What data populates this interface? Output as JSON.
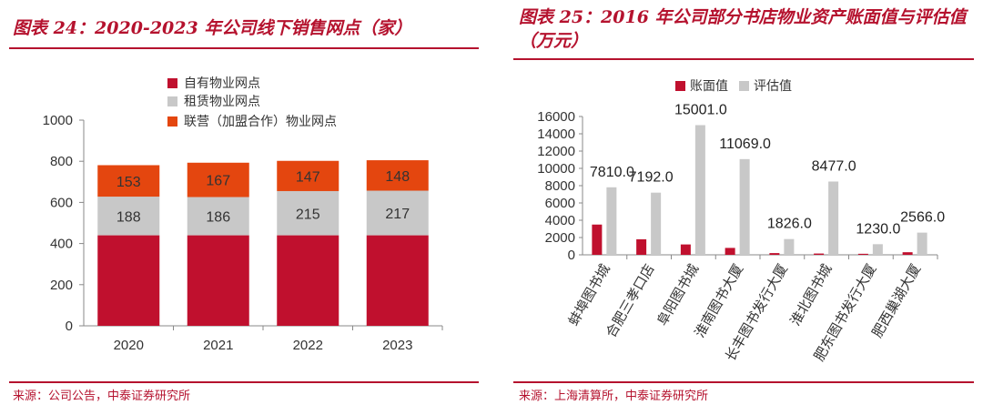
{
  "left": {
    "title": "图表 24：2020-2023 年公司线下销售网点（家）",
    "source": "来源：公司公告，中泰证券研究所",
    "colors": {
      "self": "#c0102e",
      "lease": "#c8c8c8",
      "coop": "#e4460f"
    },
    "chart_data": {
      "type": "bar",
      "stacked": true,
      "categories": [
        "2020",
        "2021",
        "2022",
        "2023"
      ],
      "series": [
        {
          "name": "自有物业网点",
          "values": [
            440,
            440,
            440,
            440
          ]
        },
        {
          "name": "租赁物业网点",
          "values": [
            188,
            186,
            215,
            217
          ]
        },
        {
          "name": "联营（加盟合作）物业网点",
          "values": [
            153,
            167,
            147,
            148
          ]
        }
      ],
      "ylim": [
        0,
        1000
      ],
      "yticks": [
        0,
        200,
        400,
        600,
        800,
        1000
      ],
      "legend": "top-center"
    }
  },
  "right": {
    "title": "图表 25：2016 年公司部分书店物业资产账面值与评估值（万元）",
    "source": "来源：上海清算所，中泰证券研究所",
    "colors": {
      "book": "#c0102e",
      "eval": "#c8c8c8"
    },
    "chart_data": {
      "type": "bar",
      "categories": [
        "蚌埠图书城",
        "合肥三孝口店",
        "阜阳图书城",
        "淮南图书大厦",
        "长丰图书发行大厦",
        "淮北图书城",
        "肥东图书发行大厦",
        "肥西巢湖大厦"
      ],
      "series": [
        {
          "name": "账面值",
          "values": [
            3500,
            1800,
            1200,
            800,
            200,
            150,
            120,
            300
          ]
        },
        {
          "name": "评估值",
          "values": [
            7810.0,
            7192.0,
            15001.0,
            11069.0,
            1826.0,
            8477.0,
            1230.0,
            2566.0
          ]
        }
      ],
      "data_labels": [
        "7810.0",
        "7192.0",
        "15001.0",
        "11069.0",
        "1826.0",
        "8477.0",
        "1230.0",
        "2566.0"
      ],
      "ylim": [
        0,
        16000
      ],
      "yticks": [
        0,
        2000,
        4000,
        6000,
        8000,
        10000,
        12000,
        14000,
        16000
      ],
      "legend": "top-center"
    }
  }
}
